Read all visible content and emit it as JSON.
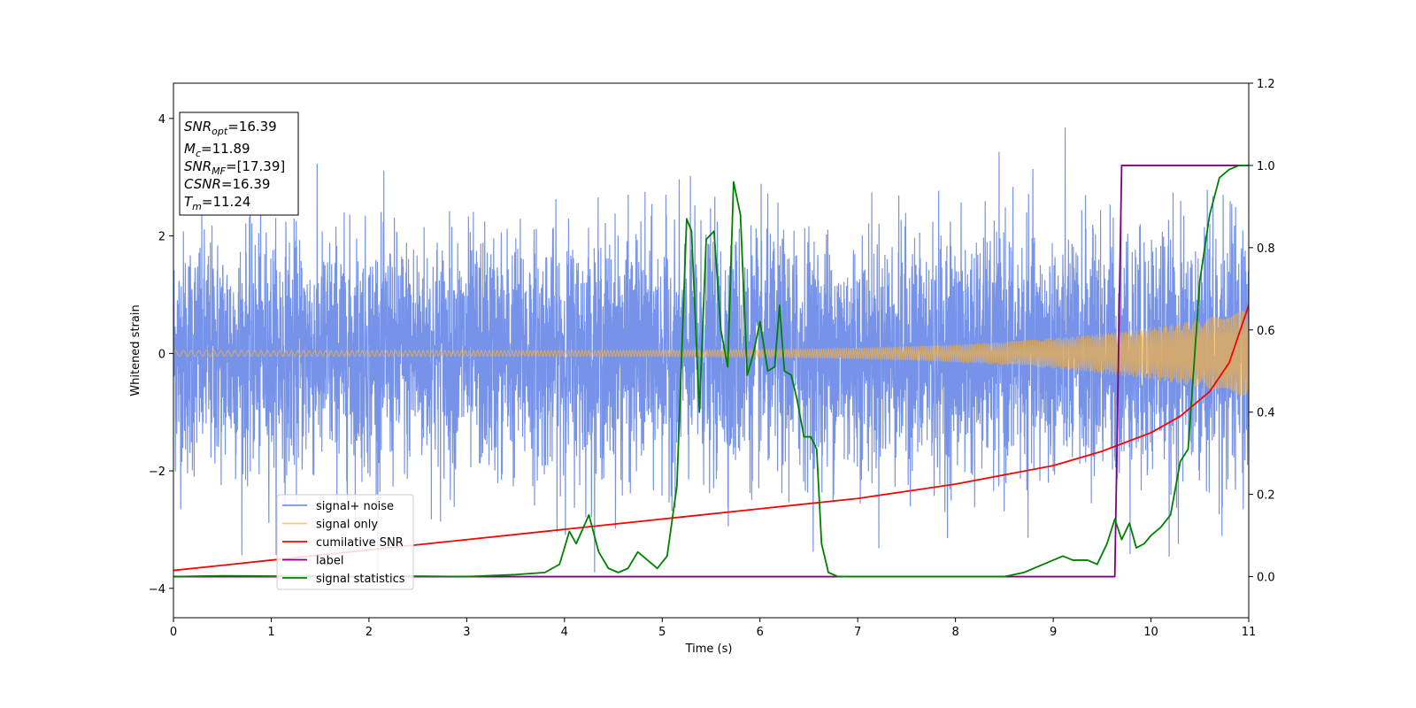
{
  "chart_data": {
    "type": "line",
    "xlabel": "Time (s)",
    "ylabel": "Whitened strain",
    "xlim": [
      0,
      11
    ],
    "ylim": [
      -4.5,
      4.6
    ],
    "y2lim": [
      -0.1,
      1.2
    ],
    "x_ticks": [
      "0",
      "1",
      "2",
      "3",
      "4",
      "5",
      "6",
      "7",
      "8",
      "9",
      "10",
      "11"
    ],
    "y_ticks": [
      "4",
      "2",
      "0",
      "−2",
      "−4"
    ],
    "y2_ticks": [
      "1.2",
      "1.0",
      "0.8",
      "0.6",
      "0.4",
      "0.2",
      "0.0"
    ],
    "grid": false,
    "legend_position": "lower-left",
    "info_box": {
      "lines": [
        {
          "main": "SNR",
          "sub": "opt",
          "rest": "=16.39"
        },
        {
          "main": "M",
          "sub": "c",
          "rest": "=11.89"
        },
        {
          "main": "SNR",
          "sub": "MF",
          "rest": "=[17.39]"
        },
        {
          "main": "CSNR",
          "sub": "",
          "rest": "=16.39"
        },
        {
          "main": "T",
          "sub": "m",
          "rest": "=11.24"
        }
      ]
    },
    "series": [
      {
        "name": "signal+ noise",
        "color": "#4169e1",
        "axis": "left",
        "kind": "noise",
        "std": 1.0,
        "peak_max": 4.15,
        "peak_min": -4.1
      },
      {
        "name": "signal only",
        "color": "#f5b041",
        "axis": "left",
        "kind": "chirp",
        "amp_start": 0.05,
        "amp_end": 0.75
      },
      {
        "name": "cumilative SNR",
        "color": "#ff0000",
        "axis": "right",
        "x": [
          0,
          1,
          2,
          3,
          4,
          5,
          6,
          7,
          8,
          9,
          9.5,
          10,
          10.3,
          10.6,
          10.8,
          11
        ],
        "y": [
          0.015,
          0.04,
          0.065,
          0.09,
          0.115,
          0.14,
          0.165,
          0.19,
          0.225,
          0.27,
          0.305,
          0.35,
          0.39,
          0.45,
          0.52,
          0.66
        ]
      },
      {
        "name": "label",
        "color": "#800080",
        "axis": "right",
        "x": [
          0,
          9.63,
          9.7,
          11
        ],
        "y": [
          0.0,
          0.0,
          1.0,
          1.0
        ]
      },
      {
        "name": "signal statistics",
        "color": "#008000",
        "axis": "right",
        "x": [
          0,
          0.5,
          1,
          1.5,
          2,
          2.5,
          3,
          3.2,
          3.5,
          3.8,
          3.95,
          4.05,
          4.12,
          4.25,
          4.35,
          4.45,
          4.55,
          4.65,
          4.75,
          4.85,
          4.95,
          5.05,
          5.15,
          5.25,
          5.3,
          5.38,
          5.45,
          5.53,
          5.6,
          5.67,
          5.73,
          5.8,
          5.87,
          5.93,
          6.0,
          6.08,
          6.15,
          6.2,
          6.25,
          6.32,
          6.38,
          6.45,
          6.52,
          6.58,
          6.63,
          6.7,
          6.8,
          7.0,
          7.5,
          8.0,
          8.5,
          8.7,
          8.9,
          9.0,
          9.1,
          9.2,
          9.35,
          9.45,
          9.55,
          9.63,
          9.7,
          9.78,
          9.85,
          9.93,
          10.0,
          10.1,
          10.2,
          10.3,
          10.38,
          10.5,
          10.6,
          10.7,
          10.8,
          10.9,
          11
        ],
        "y": [
          0.0,
          0.002,
          0.001,
          0.001,
          0.0,
          0.001,
          0.0,
          0.002,
          0.005,
          0.01,
          0.03,
          0.11,
          0.08,
          0.15,
          0.06,
          0.02,
          0.01,
          0.02,
          0.06,
          0.04,
          0.02,
          0.05,
          0.22,
          0.87,
          0.84,
          0.4,
          0.82,
          0.84,
          0.6,
          0.51,
          0.96,
          0.88,
          0.49,
          0.54,
          0.62,
          0.5,
          0.51,
          0.66,
          0.5,
          0.49,
          0.43,
          0.34,
          0.34,
          0.31,
          0.08,
          0.01,
          0.0,
          0.0,
          0.0,
          0.0,
          0.0,
          0.01,
          0.03,
          0.04,
          0.05,
          0.04,
          0.04,
          0.03,
          0.08,
          0.14,
          0.09,
          0.13,
          0.07,
          0.08,
          0.1,
          0.12,
          0.15,
          0.28,
          0.31,
          0.72,
          0.88,
          0.97,
          0.99,
          1.0,
          1.0
        ]
      }
    ]
  }
}
